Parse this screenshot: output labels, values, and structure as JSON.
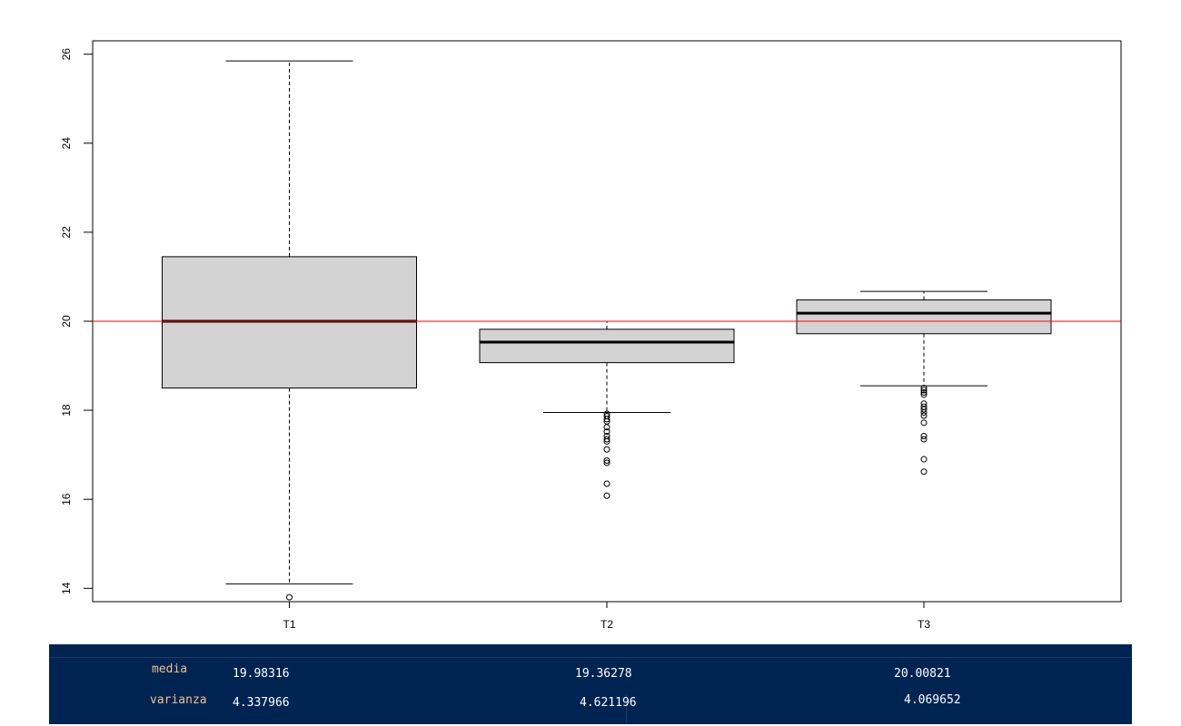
{
  "chart_data": {
    "type": "box",
    "categories": [
      "T1",
      "T2",
      "T3"
    ],
    "ylim": [
      13.7,
      26.3
    ],
    "y_ticks": [
      14,
      16,
      18,
      20,
      22,
      24,
      26
    ],
    "boxes": [
      {
        "name": "T1",
        "lower_whisker": 14.1,
        "q1": 18.5,
        "median": 20.0,
        "q3": 21.45,
        "upper_whisker": 25.85,
        "outliers": [
          13.8
        ]
      },
      {
        "name": "T2",
        "lower_whisker": 17.95,
        "q1": 19.07,
        "median": 19.53,
        "q3": 19.82,
        "upper_whisker": 20.0,
        "outliers": [
          17.92,
          17.87,
          17.8,
          17.75,
          17.62,
          17.52,
          17.42,
          17.35,
          17.3,
          17.12,
          16.87,
          16.82,
          16.35,
          16.08
        ]
      },
      {
        "name": "T3",
        "lower_whisker": 18.55,
        "q1": 19.72,
        "median": 20.18,
        "q3": 20.48,
        "upper_whisker": 20.67,
        "outliers": [
          18.5,
          18.45,
          18.4,
          18.35,
          18.15,
          18.08,
          18.02,
          17.95,
          17.88,
          17.72,
          17.42,
          17.35,
          16.9,
          16.62
        ]
      }
    ],
    "reference_line": {
      "y": 20.0,
      "color": "#ff0000"
    },
    "box_fill": "#d3d3d3",
    "grid": false,
    "legend": "none"
  },
  "stats": {
    "media_label": "media",
    "varianza_label": "varianza",
    "media": [
      "19.98316",
      "19.36278",
      "20.00821"
    ],
    "varianza": [
      "4.337966",
      "4.621196",
      "4.069652"
    ]
  }
}
